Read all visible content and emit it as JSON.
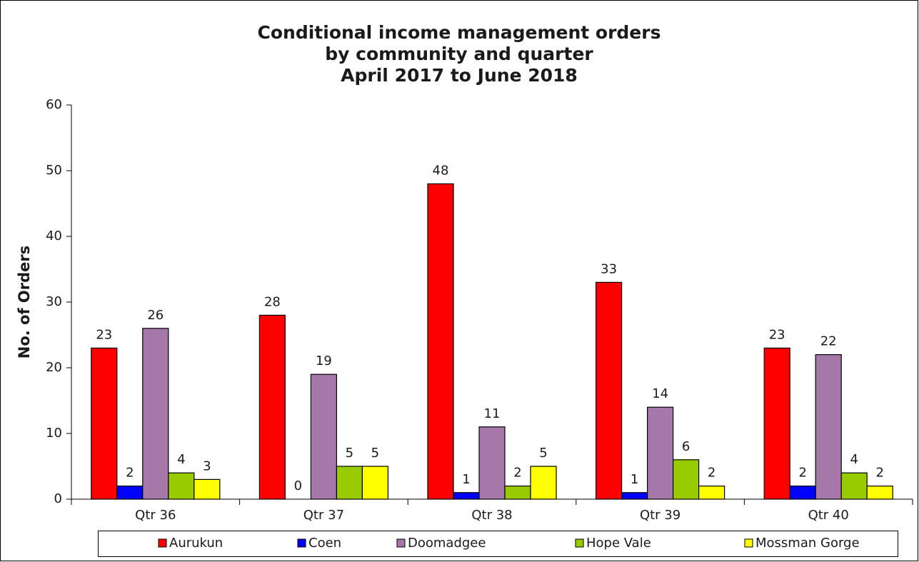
{
  "chart_data": {
    "type": "bar",
    "title": [
      "Conditional income management orders",
      "by community and quarter",
      "April 2017 to June 2018"
    ],
    "y_label": "No. of  Orders",
    "categories": [
      "Qtr 36",
      "Qtr 37",
      "Qtr 38",
      "Qtr 39",
      "Qtr 40"
    ],
    "series": [
      {
        "name": "Aurukun",
        "color": "#ff0000",
        "values": [
          23,
          28,
          48,
          33,
          23
        ]
      },
      {
        "name": "Coen",
        "color": "#0000ff",
        "values": [
          2,
          0,
          1,
          1,
          2
        ]
      },
      {
        "name": "Doomadgee",
        "color": "#a678aa",
        "values": [
          26,
          19,
          11,
          14,
          22
        ]
      },
      {
        "name": "Hope Vale",
        "color": "#99cc00",
        "values": [
          4,
          5,
          2,
          6,
          4
        ]
      },
      {
        "name": "Mossman Gorge",
        "color": "#ffff00",
        "values": [
          3,
          5,
          5,
          2,
          2
        ]
      }
    ],
    "ylim": [
      0,
      60
    ],
    "yticks": [
      0,
      10,
      20,
      30,
      40,
      50,
      60
    ],
    "legend": "bottom"
  }
}
